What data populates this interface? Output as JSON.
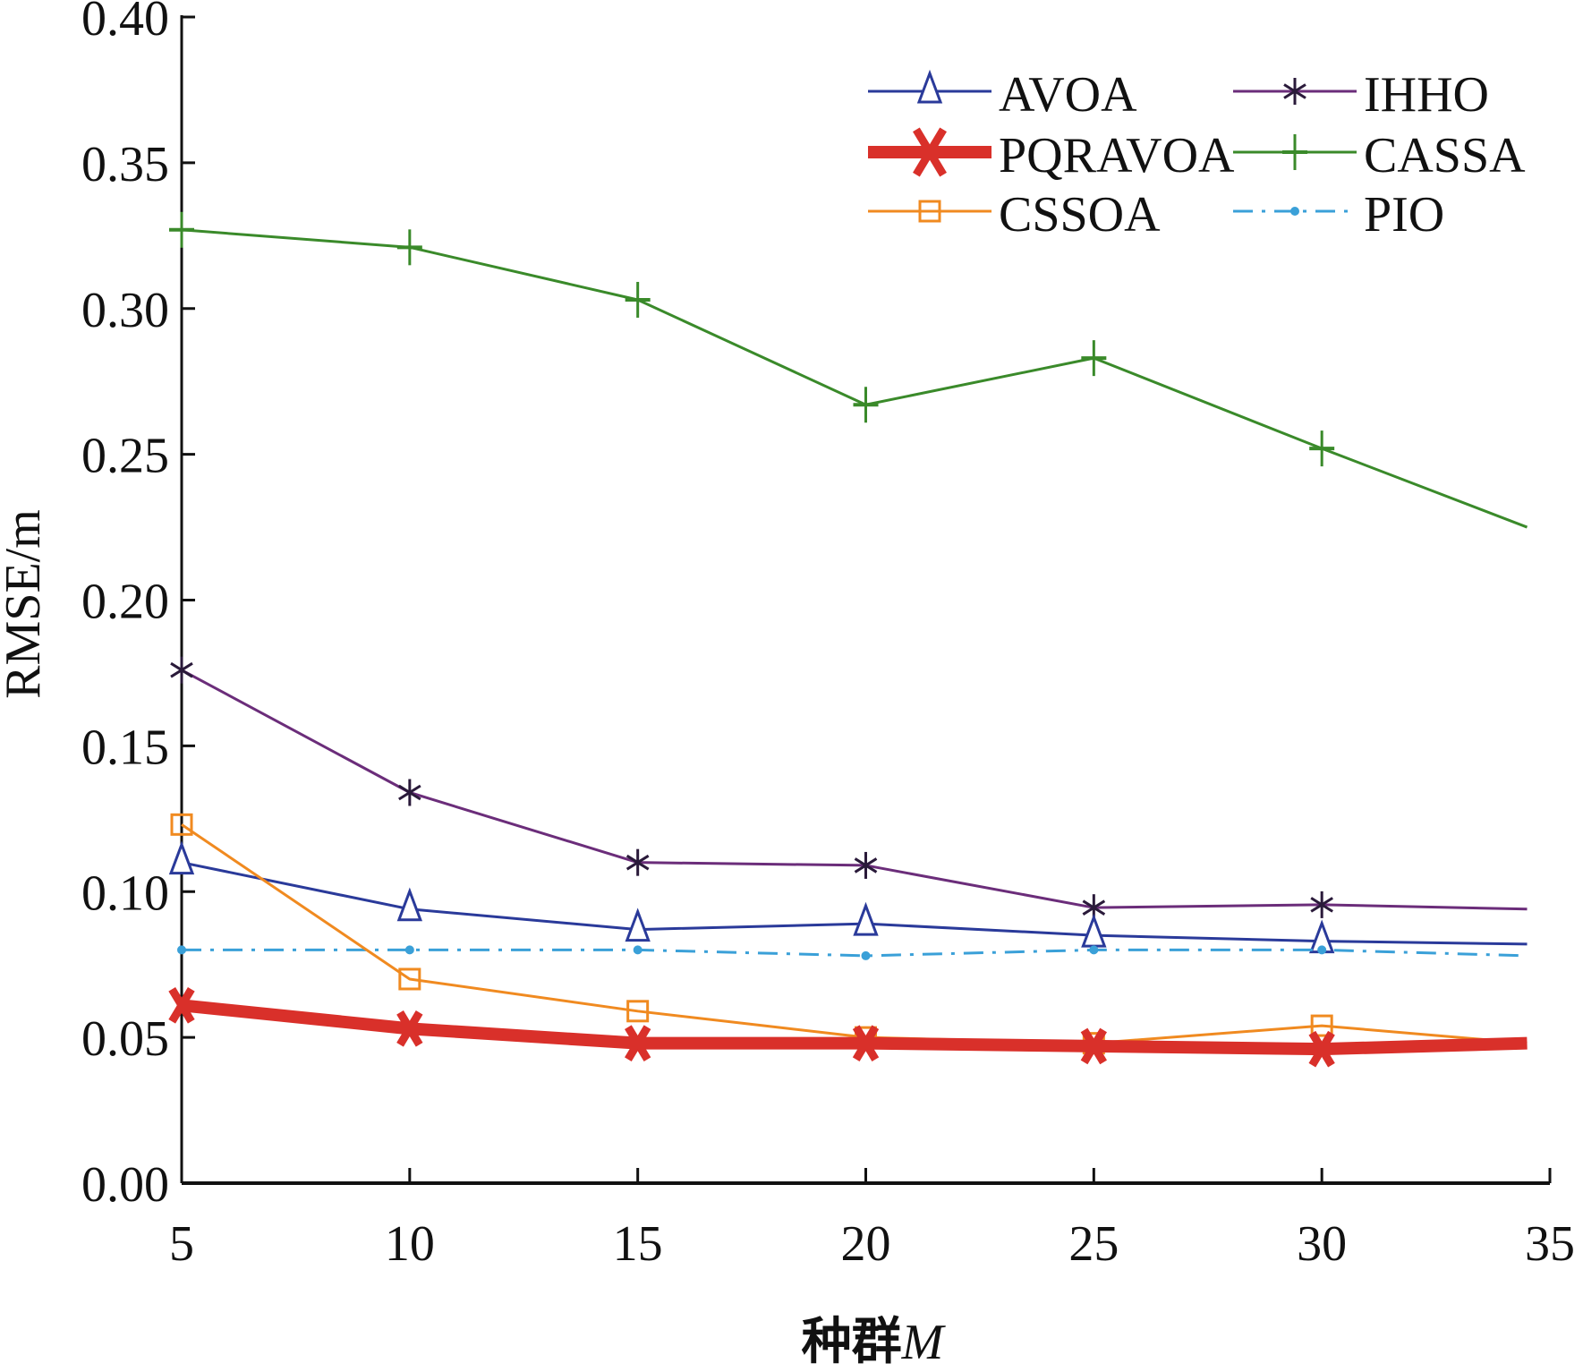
{
  "chart_data": {
    "type": "line",
    "title": "",
    "xlabel": "种群M",
    "xlabel_main": "种群",
    "xlabel_var": "M",
    "ylabel": "RMSE/m",
    "xlim": [
      5,
      35
    ],
    "ylim": [
      0.0,
      0.4
    ],
    "xticks": [
      "5",
      "10",
      "15",
      "20",
      "25",
      "30",
      "35"
    ],
    "yticks": [
      "0.00",
      "0.05",
      "0.10",
      "0.15",
      "0.20",
      "0.25",
      "0.30",
      "0.35",
      "0.40"
    ],
    "grid": false,
    "legend_position": "top-right",
    "x": [
      5,
      10,
      15,
      20,
      25,
      30,
      34.5
    ],
    "series": [
      {
        "name": "AVOA",
        "color": "#2a3a9a",
        "marker": "triangle",
        "values": [
          0.11,
          0.094,
          0.087,
          0.089,
          0.085,
          0.083,
          0.082
        ]
      },
      {
        "name": "IHHO",
        "color": "#6b2d7a",
        "marker": "asterisk",
        "values": [
          0.176,
          0.134,
          0.11,
          0.109,
          0.0945,
          0.0955,
          0.094
        ]
      },
      {
        "name": "PQRAVOA",
        "color": "#d9302a",
        "marker": "x",
        "values": [
          0.061,
          0.053,
          0.048,
          0.048,
          0.047,
          0.046,
          0.048
        ]
      },
      {
        "name": "CASSA",
        "color": "#3a8a2a",
        "marker": "plus",
        "values": [
          0.327,
          0.321,
          0.303,
          0.267,
          0.283,
          0.252,
          0.225
        ]
      },
      {
        "name": "CSSOA",
        "color": "#f08a20",
        "marker": "square",
        "values": [
          0.123,
          0.07,
          0.059,
          0.05,
          0.048,
          0.054,
          0.048
        ]
      },
      {
        "name": "PIO",
        "color": "#3aa0d8",
        "marker": "dot",
        "values": [
          0.08,
          0.08,
          0.08,
          0.078,
          0.08,
          0.08,
          0.078
        ]
      }
    ]
  }
}
